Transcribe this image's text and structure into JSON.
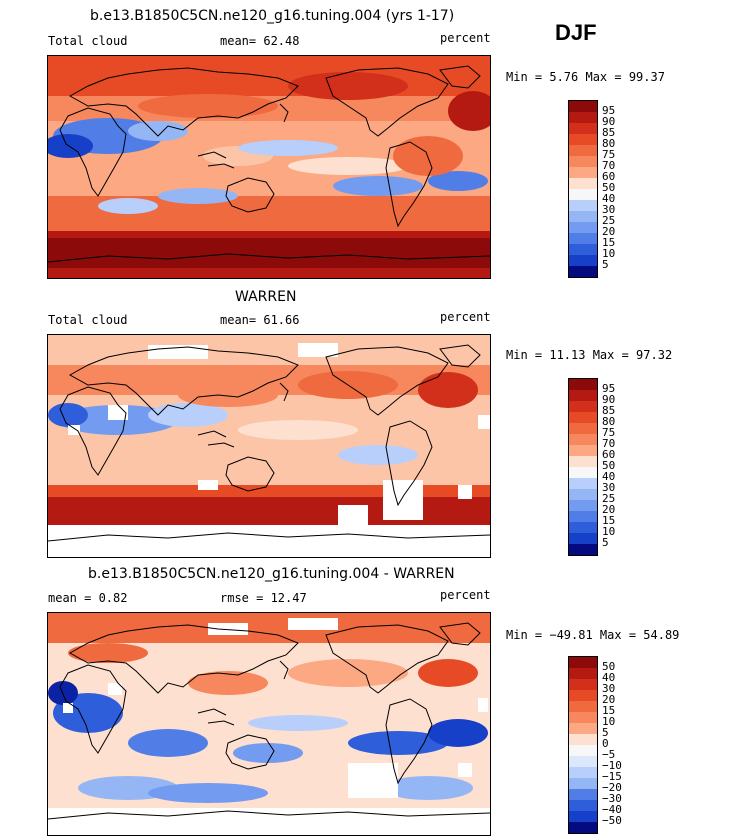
{
  "season": "DJF",
  "colors": {
    "pos_scale": [
      "#f7f7f7",
      "#fde0cf",
      "#fcc5a8",
      "#fba883",
      "#f7875d",
      "#f06a3f",
      "#e64b26",
      "#d2301b",
      "#b51a12",
      "#8c0a0a"
    ],
    "neg_scale": [
      "#dbe7fb",
      "#b8cffb",
      "#95b6f5",
      "#739bef",
      "#507ee6",
      "#2f5edb",
      "#1640c8",
      "#0a22a3",
      "#050a80"
    ]
  },
  "panels": [
    {
      "id": "model",
      "title": "b.e13.B1850C5CN.ne120_g16.tuning.004 (yrs 1-17)",
      "left_label": "Total cloud",
      "center_label": "mean=  62.48",
      "right_label": "percent",
      "minmax": "Min =    5.76 Max =  99.37",
      "legend": {
        "levels": [
          "95",
          "90",
          "85",
          "80",
          "75",
          "70",
          "60",
          "50",
          "40",
          "30",
          "25",
          "20",
          "15",
          "10",
          "5"
        ],
        "colors": [
          "#8c0a0a",
          "#b51a12",
          "#d2301b",
          "#e64b26",
          "#f06a3f",
          "#f7875d",
          "#fba883",
          "#fde0cf",
          "#f7f7f7",
          "#b8cffb",
          "#95b6f5",
          "#739bef",
          "#507ee6",
          "#2f5edb",
          "#1640c8",
          "#050a80"
        ]
      }
    },
    {
      "id": "obs",
      "title": "WARREN",
      "left_label": "Total cloud",
      "center_label": "mean=  61.66",
      "right_label": "percent",
      "minmax": "Min =  11.13 Max =  97.32",
      "legend": {
        "levels": [
          "95",
          "90",
          "85",
          "80",
          "75",
          "70",
          "60",
          "50",
          "40",
          "30",
          "25",
          "20",
          "15",
          "10",
          "5"
        ],
        "colors": [
          "#8c0a0a",
          "#b51a12",
          "#d2301b",
          "#e64b26",
          "#f06a3f",
          "#f7875d",
          "#fba883",
          "#fde0cf",
          "#f7f7f7",
          "#b8cffb",
          "#95b6f5",
          "#739bef",
          "#507ee6",
          "#2f5edb",
          "#1640c8",
          "#050a80"
        ]
      }
    },
    {
      "id": "diff",
      "title": "b.e13.B1850C5CN.ne120_g16.tuning.004 - WARREN",
      "left_label": "mean =    0.82",
      "center_label": "rmse =   12.47",
      "right_label": "percent",
      "minmax": "Min = −49.81 Max =  54.89",
      "legend": {
        "levels": [
          "50",
          "40",
          "30",
          "20",
          "15",
          "10",
          "5",
          "0",
          "−5",
          "−10",
          "−15",
          "−20",
          "−30",
          "−40",
          "−50"
        ],
        "colors": [
          "#8c0a0a",
          "#b51a12",
          "#d2301b",
          "#e64b26",
          "#f06a3f",
          "#f7875d",
          "#fba883",
          "#fde0cf",
          "#f7f7f7",
          "#dbe7fb",
          "#b8cffb",
          "#95b6f5",
          "#507ee6",
          "#2f5edb",
          "#1640c8",
          "#050a80"
        ]
      }
    }
  ]
}
